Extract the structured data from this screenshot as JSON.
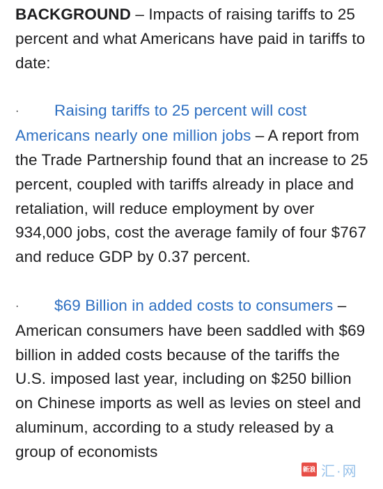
{
  "intro": {
    "label": "BACKGROUND",
    "text": " – Impacts of raising tariffs to 25 percent and what Americans have paid in tariffs to date:"
  },
  "bullets": [
    {
      "marker": "·",
      "link": "Raising tariffs to 25 percent will cost Americans nearly one million jobs",
      "text": " – A report from the Trade Partnership found that an increase to 25 percent, coupled with tariffs already in place and retaliation, will reduce employment by over 934,000 jobs, cost the average family of four $767 and reduce GDP by 0.37 percent."
    },
    {
      "marker": "·",
      "link": "$69 Billion in added costs to consumers",
      "text": " – American consumers have been saddled with $69 billion in added costs because of the tariffs the U.S. imposed last year, including on $250 billion on Chinese imports as well as levies on steel and aluminum, according to a study released by a group of economists"
    }
  ],
  "watermark": {
    "badge": "新浪",
    "text": "汇·网"
  },
  "colors": {
    "text": "#1c1c1e",
    "link": "#2d6fc1",
    "background": "#ffffff"
  }
}
